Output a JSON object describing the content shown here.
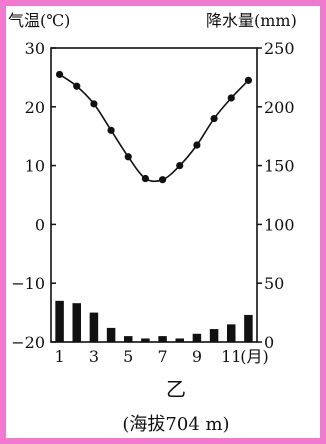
{
  "chart_data": {
    "type": "bar+line",
    "left_axis_label": "气温(℃)",
    "right_axis_label": "降水量(mm)",
    "x_unit_label": "(月)",
    "x_ticks": [
      "1",
      "3",
      "5",
      "7",
      "9",
      "11"
    ],
    "months": [
      1,
      2,
      3,
      4,
      5,
      6,
      7,
      8,
      9,
      10,
      11,
      12
    ],
    "temperature": {
      "values": [
        25.5,
        23.5,
        20.5,
        16,
        11.5,
        7.8,
        7.6,
        10,
        13.5,
        18,
        21.5,
        24.5
      ],
      "ylim": [
        -20,
        30
      ],
      "ticks": [
        "30",
        "20",
        "10",
        "0",
        "−10",
        "−20"
      ]
    },
    "precipitation": {
      "values": [
        35,
        33,
        25,
        12,
        5,
        3,
        5,
        3,
        7,
        11,
        15,
        23
      ],
      "ylim": [
        0,
        250
      ],
      "ticks": [
        "250",
        "200",
        "150",
        "100",
        "50",
        "0"
      ]
    },
    "location_label": "乙",
    "elevation_label": "(海拔704 m)"
  }
}
